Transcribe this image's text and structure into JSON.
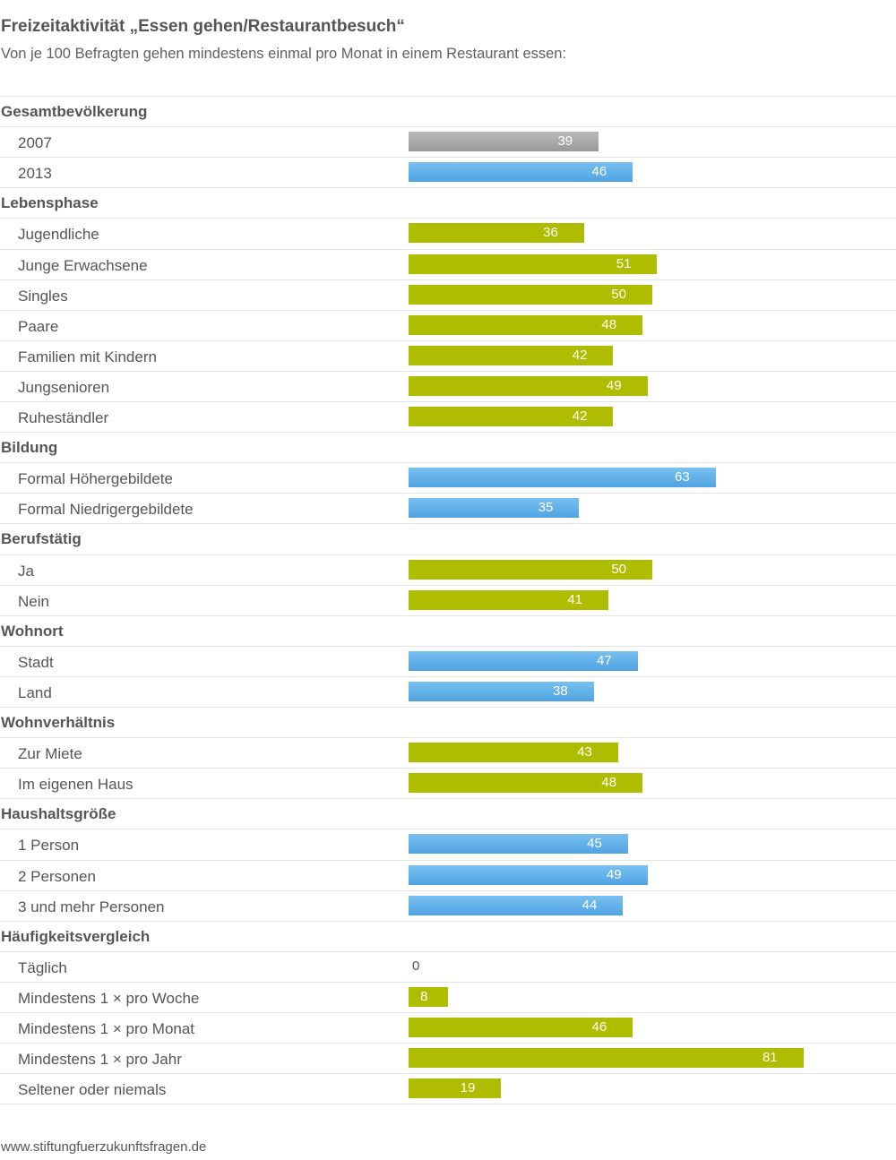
{
  "chart_data": {
    "type": "bar",
    "orientation": "horizontal",
    "title": "Freizeitaktivität „Essen gehen/Restaurantbesuch“",
    "subtitle": "Von je 100 Befragten gehen mindestens einmal pro Monat in einem Restaurant essen:",
    "xlim": [
      0,
      100
    ],
    "colors": {
      "gray": "#a6a6a6",
      "blue": "#5aaee8",
      "green": "#aebd00"
    },
    "groups": [
      {
        "name": "Gesamtbevölkerung",
        "items": [
          {
            "label": "2007",
            "value": 39,
            "color": "gray"
          },
          {
            "label": "2013",
            "value": 46,
            "color": "blue"
          }
        ]
      },
      {
        "name": "Lebensphase",
        "items": [
          {
            "label": "Jugendliche",
            "value": 36,
            "color": "green"
          },
          {
            "label": "Junge Erwachsene",
            "value": 51,
            "color": "green"
          },
          {
            "label": "Singles",
            "value": 50,
            "color": "green"
          },
          {
            "label": "Paare",
            "value": 48,
            "color": "green"
          },
          {
            "label": "Familien mit Kindern",
            "value": 42,
            "color": "green"
          },
          {
            "label": "Jungsenioren",
            "value": 49,
            "color": "green"
          },
          {
            "label": "Ruheständler",
            "value": 42,
            "color": "green"
          }
        ]
      },
      {
        "name": "Bildung",
        "items": [
          {
            "label": "Formal Höhergebildete",
            "value": 63,
            "color": "blue"
          },
          {
            "label": "Formal Niedrigergebildete",
            "value": 35,
            "color": "blue"
          }
        ]
      },
      {
        "name": "Berufstätig",
        "items": [
          {
            "label": "Ja",
            "value": 50,
            "color": "green"
          },
          {
            "label": "Nein",
            "value": 41,
            "color": "green"
          }
        ]
      },
      {
        "name": "Wohnort",
        "items": [
          {
            "label": "Stadt",
            "value": 47,
            "color": "blue"
          },
          {
            "label": "Land",
            "value": 38,
            "color": "blue"
          }
        ]
      },
      {
        "name": "Wohnverhältnis",
        "items": [
          {
            "label": "Zur Miete",
            "value": 43,
            "color": "green"
          },
          {
            "label": "Im eigenen Haus",
            "value": 48,
            "color": "green"
          }
        ]
      },
      {
        "name": "Haushaltsgröße",
        "items": [
          {
            "label": "1 Person",
            "value": 45,
            "color": "blue"
          },
          {
            "label": "2 Personen",
            "value": 49,
            "color": "blue"
          },
          {
            "label": "3 und mehr Personen",
            "value": 44,
            "color": "blue"
          }
        ]
      },
      {
        "name": "Häufigkeitsvergleich",
        "items": [
          {
            "label": "Täglich",
            "value": 0,
            "color": "green"
          },
          {
            "label": "Mindestens 1 × pro Woche",
            "value": 8,
            "color": "green"
          },
          {
            "label": "Mindestens 1 × pro Monat",
            "value": 46,
            "color": "green"
          },
          {
            "label": "Mindestens 1 × pro Jahr",
            "value": 81,
            "color": "green"
          },
          {
            "label": "Seltener oder niemals",
            "value": 19,
            "color": "green"
          }
        ]
      }
    ]
  },
  "footer": {
    "url": "www.stiftungfuerzukunftsfragen.de"
  }
}
